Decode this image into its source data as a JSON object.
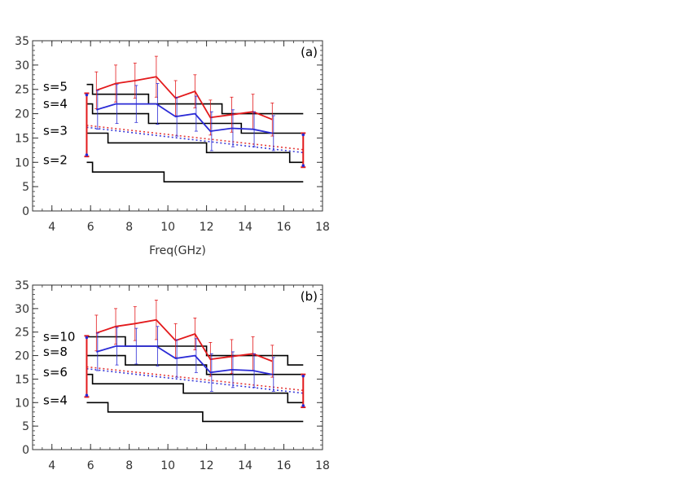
{
  "chart_data": [
    {
      "type": "line",
      "panel_label": "(a)",
      "xlabel": "Freq(GHz)",
      "xlim": [
        3,
        18
      ],
      "ylim": [
        0,
        35
      ],
      "xticks": [
        4,
        6,
        8,
        10,
        12,
        14,
        16,
        18
      ],
      "yticks": [
        0,
        5,
        10,
        15,
        20,
        25,
        30,
        35
      ],
      "colors": {
        "observed": "#e31a1c",
        "model": "#2b2bd6",
        "harmonic": "#000000",
        "dotted_red": "#e33a3a",
        "dotted_blue": "#3a3ad6"
      },
      "series": [
        {
          "name": "",
          "color": "#e31a1c",
          "x": [
            6.3,
            7.3,
            8.3,
            9.4,
            10.4,
            11.4,
            12.2,
            13.3,
            14.4,
            15.4
          ],
          "y": [
            24.8,
            26.2,
            26.8,
            27.6,
            23.2,
            24.6,
            19.2,
            19.8,
            20.4,
            18.8
          ],
          "err": [
            3.8,
            3.8,
            3.6,
            4.2,
            3.6,
            3.4,
            3.6,
            3.6,
            3.6,
            3.4
          ]
        },
        {
          "name": "",
          "color": "#2b2bd6",
          "x": [
            6.3,
            7.3,
            8.3,
            9.4,
            10.4,
            11.4,
            12.2,
            13.3,
            14.4,
            15.4
          ],
          "y": [
            20.8,
            22.0,
            22.0,
            22.0,
            19.4,
            20.0,
            16.4,
            17.0,
            16.8,
            16.0
          ],
          "err": [
            4.0,
            4.0,
            3.8,
            4.2,
            4.0,
            3.6,
            4.0,
            3.8,
            3.6,
            3.6
          ]
        },
        {
          "name": "",
          "color": "#e33a3a",
          "dash": true,
          "x": [
            5.8,
            17.0
          ],
          "y": [
            17.6,
            12.6
          ]
        },
        {
          "name": "",
          "color": "#3a3ad6",
          "dash": true,
          "x": [
            5.8,
            17.0
          ],
          "y": [
            17.2,
            12.0
          ]
        }
      ],
      "range_bars": [
        {
          "x": 5.8,
          "low": 11.2,
          "high": 24.2
        },
        {
          "x": 17.0,
          "low": 9.0,
          "high": 16.0
        }
      ],
      "harmonics": [
        {
          "label": "s=5",
          "label_y": 25.5,
          "x": [
            5.8,
            6.1,
            6.1,
            9.0,
            9.0,
            12.8,
            12.8,
            17.0
          ],
          "y": [
            26.0,
            26.0,
            24.0,
            24.0,
            22.0,
            22.0,
            20.0,
            20.0
          ]
        },
        {
          "label": "s=4",
          "label_y": 22.0,
          "x": [
            5.8,
            6.1,
            6.1,
            9.0,
            9.0,
            13.8,
            13.8,
            17.0
          ],
          "y": [
            22.0,
            22.0,
            20.0,
            20.0,
            18.0,
            18.0,
            16.0,
            16.0
          ]
        },
        {
          "label": "s=3",
          "label_y": 16.5,
          "x": [
            5.8,
            6.9,
            6.9,
            12.0,
            12.0,
            16.3,
            16.3,
            17.0
          ],
          "y": [
            16.0,
            16.0,
            14.0,
            14.0,
            12.0,
            12.0,
            10.0,
            10.0
          ]
        },
        {
          "label": "s=2",
          "label_y": 10.5,
          "x": [
            5.8,
            6.1,
            6.1,
            9.8,
            9.8,
            17.0
          ],
          "y": [
            10.0,
            10.0,
            8.0,
            8.0,
            6.0,
            6.0
          ]
        }
      ]
    },
    {
      "type": "line",
      "panel_label": "(b)",
      "xlabel": "",
      "xlim": [
        3,
        18
      ],
      "ylim": [
        0,
        35
      ],
      "xticks": [
        4,
        6,
        8,
        10,
        12,
        14,
        16,
        18
      ],
      "yticks": [
        0,
        5,
        10,
        15,
        20,
        25,
        30,
        35
      ],
      "colors": {
        "observed": "#e31a1c",
        "model": "#2b2bd6",
        "harmonic": "#000000",
        "dotted_red": "#e33a3a",
        "dotted_blue": "#3a3ad6"
      },
      "series": [
        {
          "name": "",
          "color": "#e31a1c",
          "x": [
            6.3,
            7.3,
            8.3,
            9.4,
            10.4,
            11.4,
            12.2,
            13.3,
            14.4,
            15.4
          ],
          "y": [
            24.8,
            26.2,
            26.8,
            27.6,
            23.2,
            24.6,
            19.2,
            19.8,
            20.4,
            18.8
          ],
          "err": [
            3.8,
            3.8,
            3.6,
            4.2,
            3.6,
            3.4,
            3.6,
            3.6,
            3.6,
            3.4
          ]
        },
        {
          "name": "",
          "color": "#2b2bd6",
          "x": [
            6.3,
            7.3,
            8.3,
            9.4,
            10.4,
            11.4,
            12.2,
            13.3,
            14.4,
            15.4
          ],
          "y": [
            20.8,
            22.0,
            22.0,
            22.0,
            19.4,
            20.0,
            16.4,
            17.0,
            16.8,
            16.0
          ],
          "err": [
            4.0,
            4.0,
            3.8,
            4.2,
            4.0,
            3.6,
            4.0,
            3.8,
            3.6,
            3.6
          ]
        },
        {
          "name": "",
          "color": "#e33a3a",
          "dash": true,
          "x": [
            5.8,
            17.0
          ],
          "y": [
            17.6,
            12.6
          ]
        },
        {
          "name": "",
          "color": "#3a3ad6",
          "dash": true,
          "x": [
            5.8,
            17.0
          ],
          "y": [
            17.2,
            12.0
          ]
        }
      ],
      "range_bars": [
        {
          "x": 5.8,
          "low": 11.2,
          "high": 24.2
        },
        {
          "x": 17.0,
          "low": 9.0,
          "high": 16.0
        }
      ],
      "harmonics": [
        {
          "label": "s=10",
          "label_y": 24.0,
          "x": [
            5.8,
            7.8,
            7.8,
            12.0,
            12.0,
            16.2,
            16.2,
            17.0
          ],
          "y": [
            24.0,
            24.0,
            22.0,
            22.0,
            20.0,
            20.0,
            18.0,
            18.0
          ]
        },
        {
          "label": "s=8",
          "label_y": 20.8,
          "x": [
            5.8,
            7.8,
            7.8,
            12.0,
            12.0,
            17.0
          ],
          "y": [
            20.0,
            20.0,
            18.0,
            18.0,
            16.0,
            16.0
          ]
        },
        {
          "label": "s=6",
          "label_y": 16.5,
          "x": [
            5.8,
            6.1,
            6.1,
            10.8,
            10.8,
            16.2,
            16.2,
            17.0
          ],
          "y": [
            16.0,
            16.0,
            14.0,
            14.0,
            12.0,
            12.0,
            10.0,
            10.0
          ]
        },
        {
          "label": "s=4",
          "label_y": 10.5,
          "x": [
            5.8,
            6.9,
            6.9,
            11.8,
            11.8,
            17.0
          ],
          "y": [
            10.0,
            10.0,
            8.0,
            8.0,
            6.0,
            6.0
          ]
        }
      ]
    }
  ]
}
